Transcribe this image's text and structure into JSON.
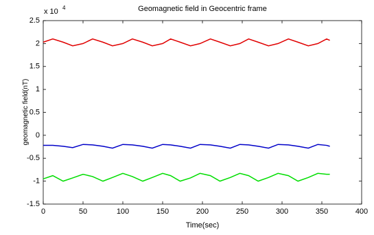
{
  "chart_data": {
    "type": "line",
    "title": "Geomagnetic field in Geocentric frame",
    "xlabel": "Time(sec)",
    "ylabel": "geomagnetic field(nT)",
    "axis_multiplier": "x 10",
    "axis_multiplier_exponent": "4",
    "x": [
      0,
      12,
      25,
      37,
      50,
      62,
      75,
      87,
      100,
      112,
      125,
      137,
      150,
      160,
      172,
      185,
      197,
      210,
      222,
      235,
      247,
      258,
      270,
      283,
      295,
      308,
      320,
      333,
      345,
      356,
      360
    ],
    "series": [
      {
        "color": "#e00000",
        "values": [
          2.03,
          2.1,
          2.03,
          1.95,
          2.0,
          2.1,
          2.03,
          1.95,
          2.0,
          2.1,
          2.03,
          1.95,
          2.0,
          2.1,
          2.03,
          1.95,
          2.0,
          2.1,
          2.03,
          1.95,
          2.0,
          2.1,
          2.03,
          1.95,
          2.0,
          2.1,
          2.03,
          1.95,
          2.0,
          2.1,
          2.07
        ]
      },
      {
        "color": "#0000c8",
        "values": [
          -0.22,
          -0.22,
          -0.24,
          -0.27,
          -0.2,
          -0.21,
          -0.24,
          -0.28,
          -0.2,
          -0.21,
          -0.24,
          -0.28,
          -0.2,
          -0.21,
          -0.24,
          -0.28,
          -0.2,
          -0.21,
          -0.24,
          -0.28,
          -0.2,
          -0.21,
          -0.24,
          -0.28,
          -0.2,
          -0.21,
          -0.24,
          -0.28,
          -0.2,
          -0.22,
          -0.24
        ]
      },
      {
        "color": "#00dd00",
        "values": [
          -0.95,
          -0.88,
          -1.0,
          -0.93,
          -0.85,
          -0.9,
          -1.0,
          -0.92,
          -0.83,
          -0.9,
          -1.0,
          -0.92,
          -0.83,
          -0.88,
          -1.0,
          -0.93,
          -0.83,
          -0.88,
          -1.0,
          -0.92,
          -0.83,
          -0.88,
          -1.0,
          -0.92,
          -0.83,
          -0.88,
          -1.0,
          -0.92,
          -0.83,
          -0.85,
          -0.85
        ]
      }
    ],
    "xlim": [
      0,
      400
    ],
    "xticks": [
      0,
      50,
      100,
      150,
      200,
      250,
      300,
      350,
      400
    ],
    "ylim": [
      -1.5,
      2.5
    ],
    "yticks": [
      -1.5,
      -1,
      -0.5,
      0,
      0.5,
      1,
      1.5,
      2,
      2.5
    ],
    "grid": false
  }
}
